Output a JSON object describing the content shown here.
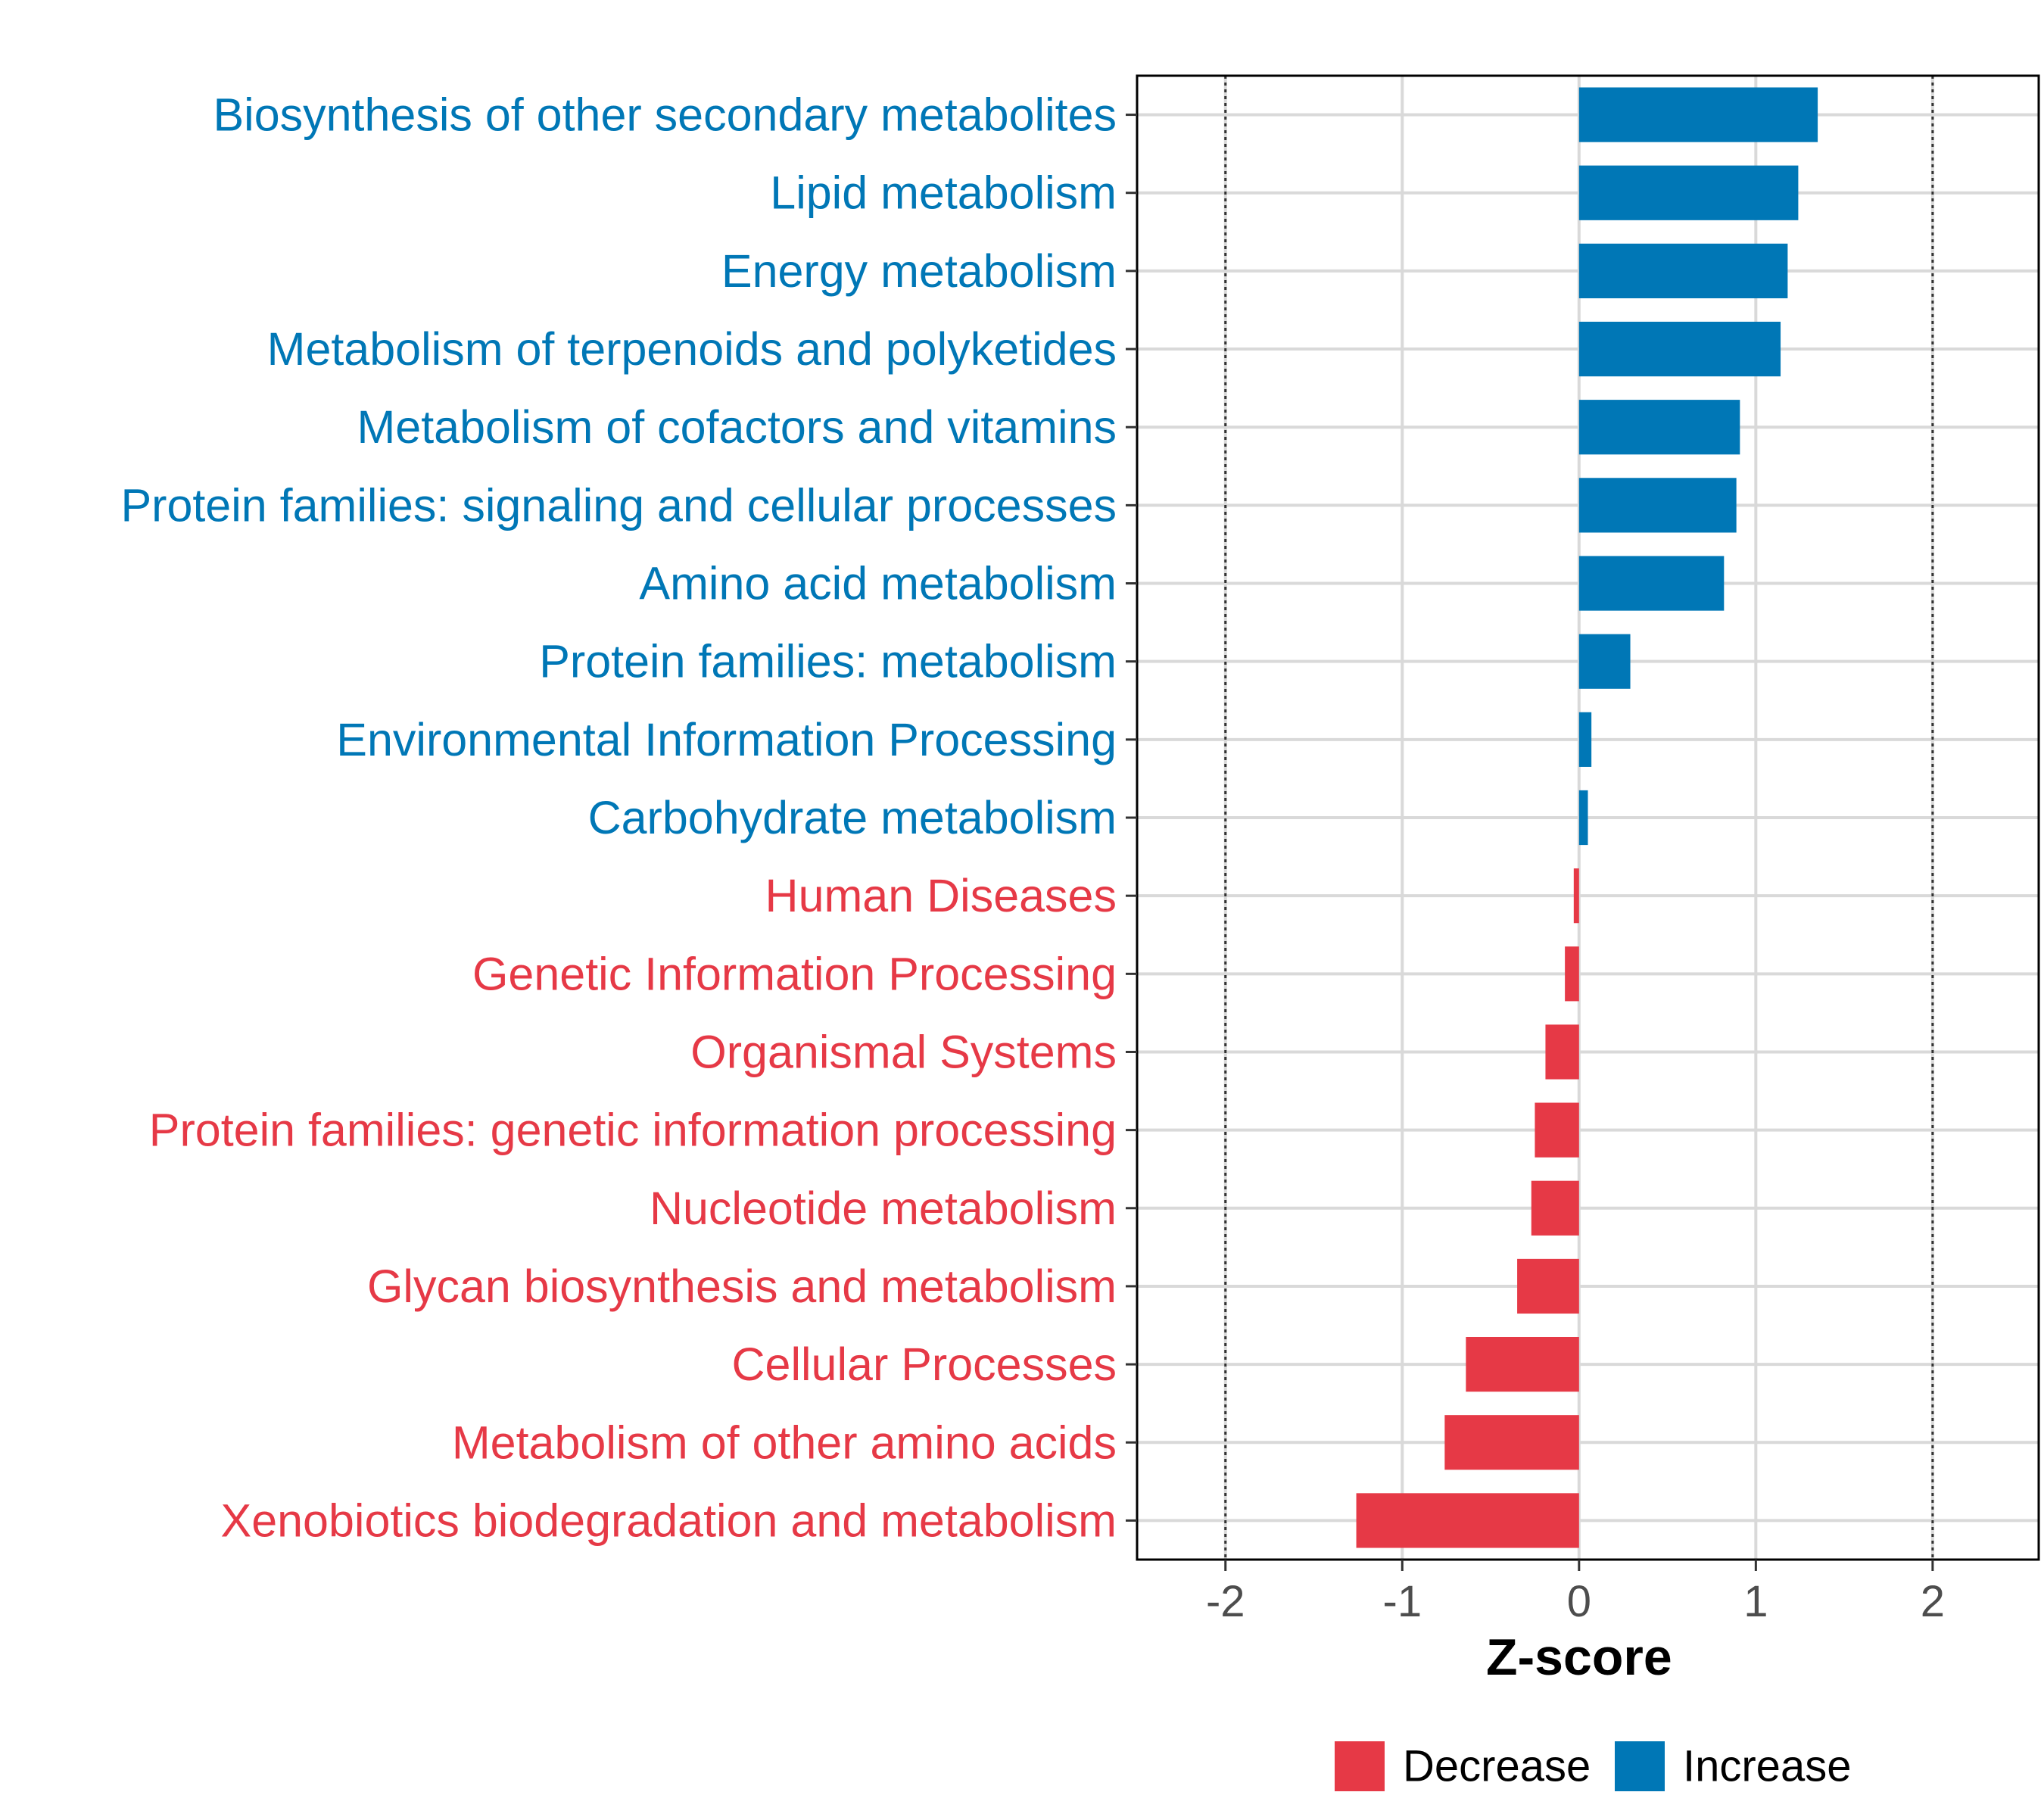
{
  "chart_data": {
    "type": "bar",
    "orientation": "horizontal",
    "title": "",
    "xlabel": "Z-score",
    "ylabel": "",
    "xlim": [
      -2.5,
      2.6
    ],
    "xticks": [
      -2,
      -1,
      0,
      1,
      2
    ],
    "xtick_labels": [
      "-2",
      "-1",
      "0",
      "1",
      "2"
    ],
    "reference_lines": [
      -2,
      2
    ],
    "grid": true,
    "categories": [
      "Biosynthesis of other secondary metabolites",
      "Lipid metabolism",
      "Energy metabolism",
      "Metabolism of terpenoids and polyketides",
      "Metabolism of cofactors and vitamins",
      "Protein families: signaling and cellular processes",
      "Amino acid metabolism",
      "Protein families: metabolism",
      "Environmental Information Processing",
      "Carbohydrate metabolism",
      "Human Diseases",
      "Genetic Information Processing",
      "Organismal Systems",
      "Protein families: genetic information processing",
      "Nucleotide metabolism",
      "Glycan biosynthesis and metabolism",
      "Cellular Processes",
      "Metabolism of other amino acids",
      "Xenobiotics biodegradation and metabolism"
    ],
    "values": [
      1.35,
      1.24,
      1.18,
      1.14,
      0.91,
      0.89,
      0.82,
      0.29,
      0.07,
      0.05,
      -0.03,
      -0.08,
      -0.19,
      -0.25,
      -0.27,
      -0.35,
      -0.64,
      -0.76,
      -1.26
    ],
    "groups": [
      "Increase",
      "Increase",
      "Increase",
      "Increase",
      "Increase",
      "Increase",
      "Increase",
      "Increase",
      "Increase",
      "Increase",
      "Decrease",
      "Decrease",
      "Decrease",
      "Decrease",
      "Decrease",
      "Decrease",
      "Decrease",
      "Decrease",
      "Decrease"
    ],
    "colors": {
      "Decrease": "#e63946",
      "Increase": "#0077b6"
    },
    "legend": {
      "position": "bottom",
      "entries": [
        "Decrease",
        "Increase"
      ]
    }
  }
}
